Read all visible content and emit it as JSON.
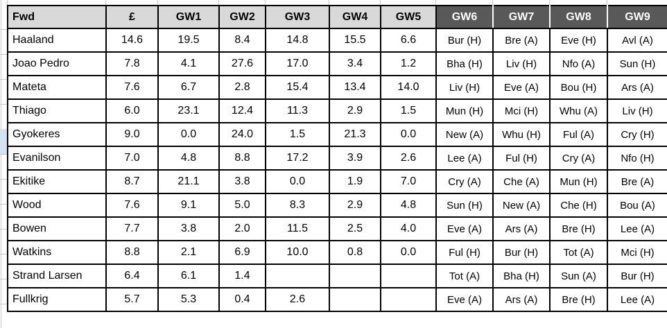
{
  "sheet": {
    "header": {
      "player": "Fwd",
      "price": "£",
      "gws": [
        "GW1",
        "GW2",
        "GW3",
        "GW4",
        "GW5",
        "GW6",
        "GW7",
        "GW8",
        "GW9"
      ]
    },
    "rows": [
      {
        "name": "Haaland",
        "price": "14.6",
        "scores": [
          {
            "v": "19.5",
            "c": "g"
          },
          {
            "v": "8.4",
            "c": "r"
          },
          {
            "v": "14.8",
            "c": "g"
          },
          {
            "v": "15.5",
            "c": "g"
          },
          {
            "v": "6.6",
            "c": "r"
          }
        ],
        "fixtures": [
          {
            "v": "Bur (H)",
            "c": "green"
          },
          {
            "v": "Bre (A)",
            "c": "lgreen"
          },
          {
            "v": "Eve (H)",
            "c": "lgreen"
          },
          {
            "v": "Avl (A)",
            "c": "orange"
          }
        ]
      },
      {
        "name": "Joao Pedro",
        "price": "7.8",
        "scores": [
          {
            "v": "4.1",
            "c": "r"
          },
          {
            "v": "27.6",
            "c": "g"
          },
          {
            "v": "17.0",
            "c": "g"
          },
          {
            "v": "3.4",
            "c": "r"
          },
          {
            "v": "1.2",
            "c": "r"
          }
        ],
        "fixtures": [
          {
            "v": "Bha (H)",
            "c": "lgreen"
          },
          {
            "v": "Liv (H)",
            "c": "orange"
          },
          {
            "v": "Nfo (A)",
            "c": "yellow"
          },
          {
            "v": "Sun (H)",
            "c": "green"
          }
        ]
      },
      {
        "name": "Mateta",
        "price": "7.6",
        "scores": [
          {
            "v": "6.7",
            "c": "r"
          },
          {
            "v": "2.8",
            "c": "r"
          },
          {
            "v": "15.4",
            "c": "g"
          },
          {
            "v": "13.4",
            "c": "g"
          },
          {
            "v": "14.0",
            "c": "g"
          }
        ],
        "fixtures": [
          {
            "v": "Liv (H)",
            "c": "orange"
          },
          {
            "v": "Eve (A)",
            "c": "orange"
          },
          {
            "v": "Bou (H)",
            "c": "lgreen"
          },
          {
            "v": "Ars (A)",
            "c": "hard"
          }
        ]
      },
      {
        "name": "Thiago",
        "price": "6.0",
        "scores": [
          {
            "v": "23.1",
            "c": "g"
          },
          {
            "v": "12.4",
            "c": "g"
          },
          {
            "v": "11.3",
            "c": "g"
          },
          {
            "v": "2.9",
            "c": "r"
          },
          {
            "v": "1.5",
            "c": "r"
          }
        ],
        "fixtures": [
          {
            "v": "Mun (H)",
            "c": "lgreen"
          },
          {
            "v": "Mci (H)",
            "c": "yellow"
          },
          {
            "v": "Whu (A)",
            "c": "lgreen"
          },
          {
            "v": "Liv (H)",
            "c": "orange"
          }
        ]
      },
      {
        "name": "Gyokeres",
        "price": "9.0",
        "scores": [
          {
            "v": "0.0",
            "c": "r"
          },
          {
            "v": "24.0",
            "c": "g"
          },
          {
            "v": "1.5",
            "c": "r"
          },
          {
            "v": "21.3",
            "c": "g"
          },
          {
            "v": "0.0",
            "c": "r"
          }
        ],
        "fixtures": [
          {
            "v": "New (A)",
            "c": "orange"
          },
          {
            "v": "Whu (H)",
            "c": "green"
          },
          {
            "v": "Ful (A)",
            "c": "yellow"
          },
          {
            "v": "Cry (H)",
            "c": "yellow"
          }
        ]
      },
      {
        "name": "Evanilson",
        "price": "7.0",
        "scores": [
          {
            "v": "4.8",
            "c": "r"
          },
          {
            "v": "8.8",
            "c": "r"
          },
          {
            "v": "17.2",
            "c": "g"
          },
          {
            "v": "3.9",
            "c": "r"
          },
          {
            "v": "2.6",
            "c": "r"
          }
        ],
        "fixtures": [
          {
            "v": "Lee (A)",
            "c": "yellow"
          },
          {
            "v": "Ful (H)",
            "c": "lgreen"
          },
          {
            "v": "Cry (A)",
            "c": "orange"
          },
          {
            "v": "Nfo (H)",
            "c": "yellow"
          }
        ]
      },
      {
        "name": "Ekitike",
        "price": "8.7",
        "scores": [
          {
            "v": "21.1",
            "c": "g"
          },
          {
            "v": "3.8",
            "c": "r"
          },
          {
            "v": "0.0",
            "c": "r"
          },
          {
            "v": "1.9",
            "c": "r"
          },
          {
            "v": "7.0",
            "c": "r"
          }
        ],
        "fixtures": [
          {
            "v": "Cry (A)",
            "c": "orange"
          },
          {
            "v": "Che (A)",
            "c": "hard"
          },
          {
            "v": "Mun (H)",
            "c": "lgreen"
          },
          {
            "v": "Bre (A)",
            "c": "lgreen"
          }
        ]
      },
      {
        "name": "Wood",
        "price": "7.6",
        "scores": [
          {
            "v": "9.1",
            "c": "r"
          },
          {
            "v": "5.0",
            "c": "r"
          },
          {
            "v": "8.3",
            "c": "r"
          },
          {
            "v": "2.9",
            "c": "r"
          },
          {
            "v": "4.8",
            "c": "r"
          }
        ],
        "fixtures": [
          {
            "v": "Sun (H)",
            "c": "green"
          },
          {
            "v": "New (A)",
            "c": "orange"
          },
          {
            "v": "Che (H)",
            "c": "yellow"
          },
          {
            "v": "Bou (A)",
            "c": "orange"
          }
        ]
      },
      {
        "name": "Bowen",
        "price": "7.7",
        "scores": [
          {
            "v": "3.8",
            "c": "r"
          },
          {
            "v": "2.0",
            "c": "r"
          },
          {
            "v": "11.5",
            "c": "g"
          },
          {
            "v": "2.5",
            "c": "r"
          },
          {
            "v": "4.0",
            "c": "r"
          }
        ],
        "fixtures": [
          {
            "v": "Eve (A)",
            "c": "orange"
          },
          {
            "v": "Ars (A)",
            "c": "hard"
          },
          {
            "v": "Bre (H)",
            "c": "green"
          },
          {
            "v": "Lee (A)",
            "c": "yellow"
          }
        ]
      },
      {
        "name": "Watkins",
        "price": "8.8",
        "scores": [
          {
            "v": "2.1",
            "c": "r"
          },
          {
            "v": "6.9",
            "c": "r"
          },
          {
            "v": "10.0",
            "c": "g"
          },
          {
            "v": "0.8",
            "c": "r"
          },
          {
            "v": "0.0",
            "c": "r"
          }
        ],
        "fixtures": [
          {
            "v": "Ful (H)",
            "c": "lgreen"
          },
          {
            "v": "Bur (H)",
            "c": "green"
          },
          {
            "v": "Tot (A)",
            "c": "yellow"
          },
          {
            "v": "Mci (H)",
            "c": "yellow"
          }
        ]
      },
      {
        "name": "Strand Larsen",
        "price": "6.4",
        "scores": [
          {
            "v": "6.1",
            "c": "r"
          },
          {
            "v": "1.4",
            "c": "r"
          },
          {
            "v": "",
            "c": ""
          },
          {
            "v": "",
            "c": ""
          },
          {
            "v": "",
            "c": ""
          }
        ],
        "fixtures": [
          {
            "v": "Tot (A)",
            "c": "yellow"
          },
          {
            "v": "Bha (H)",
            "c": "lgreen"
          },
          {
            "v": "Sun (A)",
            "c": "lgreen"
          },
          {
            "v": "Bur (H)",
            "c": "green"
          }
        ]
      },
      {
        "name": "Fullkrig",
        "price": "5.7",
        "scores": [
          {
            "v": "5.3",
            "c": "r"
          },
          {
            "v": "0.4",
            "c": "r"
          },
          {
            "v": "2.6",
            "c": "r"
          },
          {
            "v": "",
            "c": ""
          },
          {
            "v": "",
            "c": ""
          }
        ],
        "fixtures": [
          {
            "v": "Eve (A)",
            "c": "orange"
          },
          {
            "v": "Ars (A)",
            "c": "hard"
          },
          {
            "v": "Bre (H)",
            "c": "green"
          },
          {
            "v": "Lee (A)",
            "c": "yellow"
          }
        ]
      }
    ]
  },
  "colors": {
    "score_green": "#00e10b",
    "score_red": "#fe0000",
    "fix_green": "#23b14d",
    "fix_lgreen": "#9ad335",
    "fix_yellow": "#fcd144",
    "fix_orange": "#f79420",
    "fix_hard": "#f4601a",
    "header_bg": "#d9d9d9",
    "header_dark_bg": "#595959",
    "header_dark_text": "#ffffff",
    "gridline": "#c9c9c9",
    "row_highlight": "#d3e3f3"
  }
}
